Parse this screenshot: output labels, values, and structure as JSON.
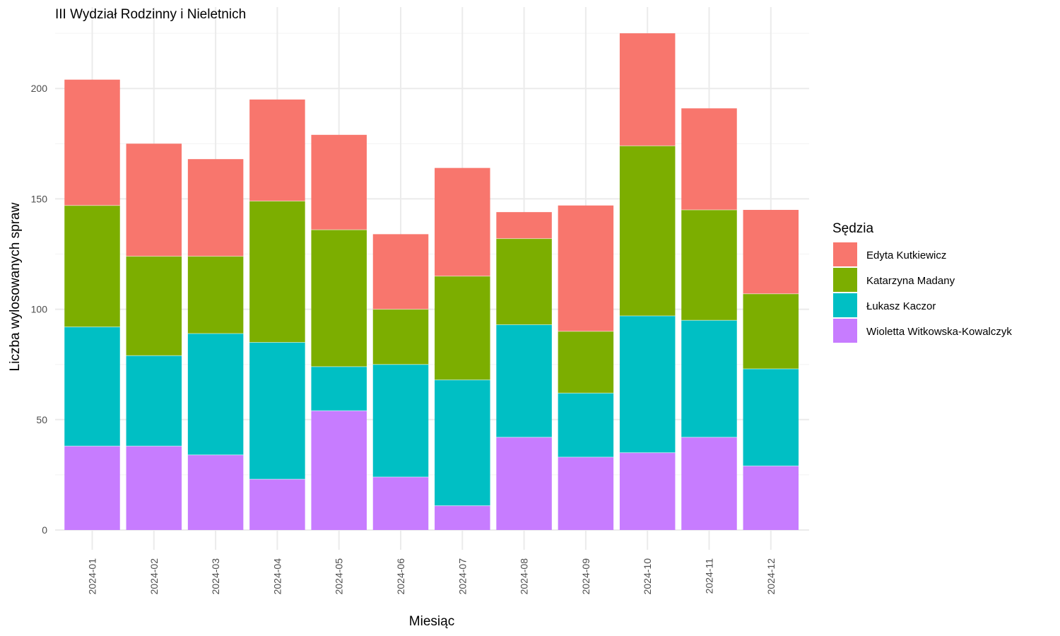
{
  "chart_data": {
    "type": "bar",
    "stacked": true,
    "title": "III Wydział Rodzinny i Nieletnich",
    "xlabel": "Miesiąc",
    "ylabel": "Liczba wylosowanych spraw",
    "ylim": [
      0,
      225
    ],
    "yticks": [
      0,
      50,
      100,
      150,
      200
    ],
    "grid": true,
    "legend_title": "Sędzia",
    "legend_position": "right",
    "categories": [
      "2024-01",
      "2024-02",
      "2024-03",
      "2024-04",
      "2024-05",
      "2024-06",
      "2024-07",
      "2024-08",
      "2024-09",
      "2024-10",
      "2024-11",
      "2024-12"
    ],
    "series": [
      {
        "name": "Edyta Kutkiewicz",
        "color": "#F8766D",
        "values": [
          57,
          51,
          44,
          46,
          43,
          34,
          49,
          12,
          57,
          51,
          46,
          38
        ]
      },
      {
        "name": "Katarzyna Madany",
        "color": "#7CAE00",
        "values": [
          55,
          45,
          35,
          64,
          62,
          25,
          47,
          39,
          28,
          77,
          50,
          34
        ]
      },
      {
        "name": "Łukasz Kaczor",
        "color": "#00BFC4",
        "values": [
          54,
          41,
          55,
          62,
          20,
          51,
          57,
          51,
          29,
          62,
          53,
          44
        ]
      },
      {
        "name": "Wioletta Witkowska-Kowalczyk",
        "color": "#C77CFF",
        "values": [
          38,
          38,
          34,
          23,
          54,
          24,
          11,
          42,
          33,
          35,
          42,
          29
        ]
      }
    ]
  }
}
